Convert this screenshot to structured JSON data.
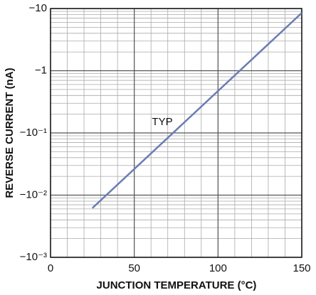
{
  "chart_data": {
    "type": "line",
    "x_label": "JUNCTION TEMPERATURE (°C)",
    "y_label": "REVERSE CURRENT (nA)",
    "annotation": "TYP",
    "x": [
      25,
      150
    ],
    "series": [
      {
        "name": "TYP",
        "color": "#6a7db3",
        "values": [
          -0.0062,
          -8.5
        ]
      }
    ],
    "xlim": [
      0,
      150
    ],
    "xticks": [
      0,
      50,
      100,
      150
    ],
    "ylim": [
      -0.001,
      -10
    ],
    "yticks": [
      {
        "value": -0.001,
        "label": "−10⁻³"
      },
      {
        "value": -0.01,
        "label": "−10⁻²"
      },
      {
        "value": -0.1,
        "label": "−10⁻¹"
      },
      {
        "value": -1,
        "label": "−1"
      },
      {
        "value": -10,
        "label": "−10"
      }
    ],
    "log_scale": true,
    "grid": true
  }
}
